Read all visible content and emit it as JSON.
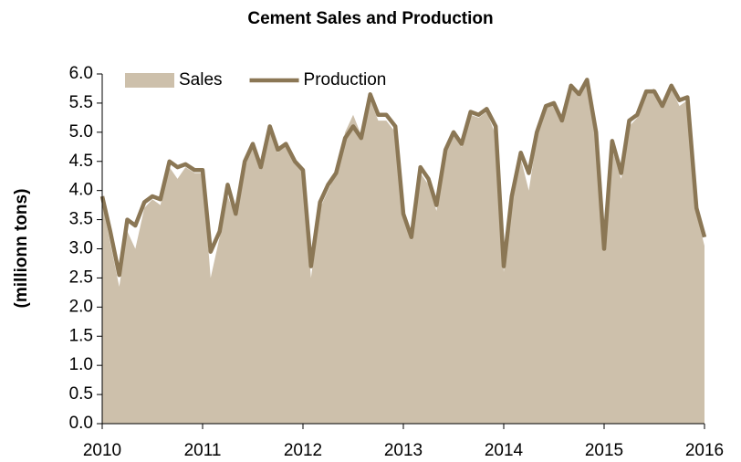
{
  "chart_data": {
    "type": "area-line",
    "title": "Cement Sales and Production",
    "ylabel": "(millionn tons)",
    "x": [
      2010,
      2010.08,
      2010.17,
      2010.25,
      2010.33,
      2010.42,
      2010.5,
      2010.58,
      2010.67,
      2010.75,
      2010.83,
      2010.92,
      2011,
      2011.08,
      2011.17,
      2011.25,
      2011.33,
      2011.42,
      2011.5,
      2011.58,
      2011.67,
      2011.75,
      2011.83,
      2011.92,
      2012,
      2012.08,
      2012.17,
      2012.25,
      2012.33,
      2012.42,
      2012.5,
      2012.58,
      2012.67,
      2012.75,
      2012.83,
      2012.92,
      2013,
      2013.08,
      2013.17,
      2013.25,
      2013.33,
      2013.42,
      2013.5,
      2013.58,
      2013.67,
      2013.75,
      2013.83,
      2013.92,
      2014,
      2014.08,
      2014.17,
      2014.25,
      2014.33,
      2014.42,
      2014.5,
      2014.58,
      2014.67,
      2014.75,
      2014.83,
      2014.92,
      2015,
      2015.08,
      2015.17,
      2015.25,
      2015.33,
      2015.42,
      2015.5,
      2015.58,
      2015.67,
      2015.75,
      2015.83,
      2015.92,
      2016
    ],
    "series": [
      {
        "name": "Sales",
        "color": "#cdc0ab",
        "kind": "area",
        "values": [
          3.8,
          3.1,
          2.35,
          3.3,
          3.0,
          3.7,
          3.85,
          3.75,
          4.4,
          4.2,
          4.4,
          4.3,
          4.3,
          2.5,
          3.2,
          3.9,
          3.55,
          4.4,
          4.75,
          4.35,
          5.0,
          4.65,
          4.8,
          4.45,
          4.3,
          2.5,
          3.7,
          4.0,
          4.3,
          5.0,
          5.3,
          4.95,
          5.55,
          5.2,
          5.2,
          5.0,
          3.5,
          3.15,
          4.3,
          4.1,
          3.65,
          4.65,
          4.95,
          4.75,
          5.3,
          5.25,
          5.35,
          4.95,
          2.6,
          3.8,
          4.55,
          4.0,
          4.9,
          5.4,
          5.5,
          5.15,
          5.75,
          5.6,
          5.85,
          4.9,
          2.95,
          4.7,
          4.2,
          5.1,
          5.25,
          5.7,
          5.75,
          5.4,
          5.75,
          5.45,
          5.55,
          3.6,
          3.05
        ]
      },
      {
        "name": "Production",
        "color": "#8b7755",
        "kind": "line",
        "values": [
          3.9,
          3.3,
          2.55,
          3.5,
          3.4,
          3.8,
          3.9,
          3.85,
          4.5,
          4.4,
          4.45,
          4.35,
          4.35,
          2.95,
          3.3,
          4.1,
          3.6,
          4.5,
          4.8,
          4.4,
          5.1,
          4.7,
          4.8,
          4.5,
          4.35,
          2.7,
          3.8,
          4.1,
          4.3,
          4.9,
          5.1,
          4.9,
          5.65,
          5.3,
          5.3,
          5.1,
          3.6,
          3.2,
          4.4,
          4.2,
          3.75,
          4.7,
          5.0,
          4.8,
          5.35,
          5.3,
          5.4,
          5.1,
          2.7,
          3.9,
          4.65,
          4.3,
          5.0,
          5.45,
          5.5,
          5.2,
          5.8,
          5.65,
          5.9,
          5.0,
          3.0,
          4.85,
          4.3,
          5.2,
          5.3,
          5.7,
          5.7,
          5.45,
          5.8,
          5.55,
          5.6,
          3.7,
          3.2
        ]
      }
    ],
    "xlim": [
      2010,
      2016
    ],
    "xticks": [
      2010,
      2011,
      2012,
      2013,
      2014,
      2015,
      2016
    ],
    "ylim": [
      0,
      6
    ],
    "yticks": [
      {
        "value": 0,
        "label": "0.0"
      },
      0.5,
      {
        "value": 1,
        "label": "1.0"
      },
      1.5,
      {
        "value": 2,
        "label": "2.0"
      },
      2.5,
      {
        "value": 3,
        "label": "3.0"
      },
      3.5,
      {
        "value": 4,
        "label": "4.0"
      },
      4.5,
      {
        "value": 5,
        "label": "5.0"
      },
      5.5,
      {
        "value": 6,
        "label": "6.0"
      }
    ],
    "legend": "top-left"
  }
}
